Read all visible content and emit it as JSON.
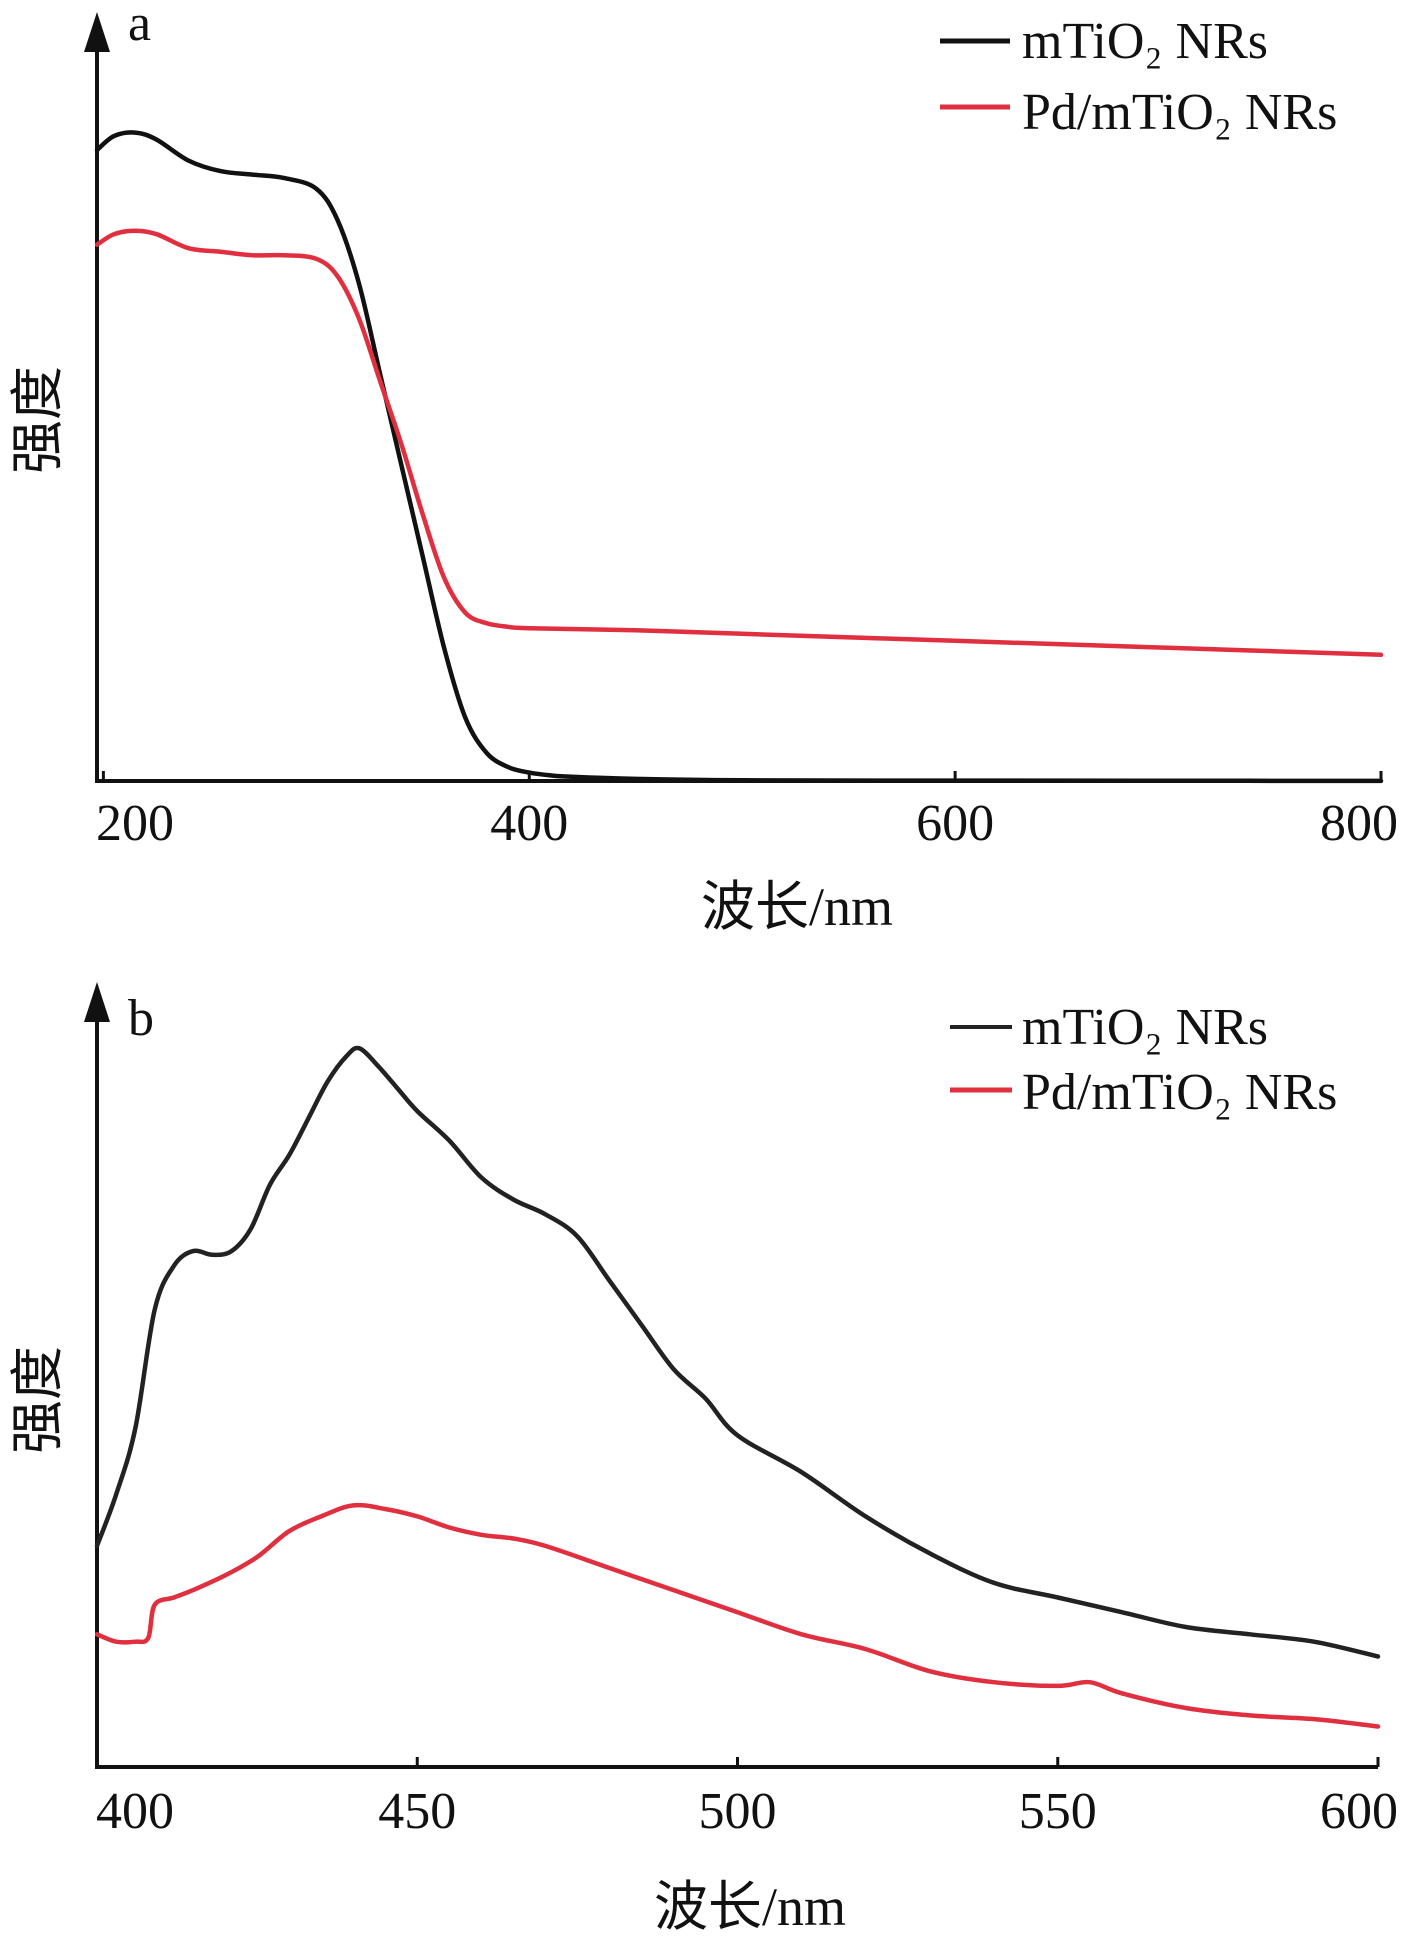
{
  "chart_data": [
    {
      "type": "line",
      "panel_label": "a",
      "xlabel": "波长/nm",
      "ylabel": "强度",
      "x_ticks": [
        "200",
        "400",
        "600",
        "800"
      ],
      "xlim": [
        197,
        800
      ],
      "ylim": [
        0,
        100
      ],
      "y_ticks_shown": false,
      "grid": false,
      "legend_position": "top-right",
      "series": [
        {
          "name": "mTiO₂ NRs",
          "color": "#111111",
          "x": [
            197,
            205,
            215,
            225,
            240,
            255,
            270,
            285,
            300,
            310,
            320,
            330,
            340,
            350,
            360,
            370,
            380,
            390,
            400,
            410,
            420,
            450,
            500,
            600,
            700,
            800
          ],
          "y": [
            90,
            92,
            92.5,
            91.5,
            88.5,
            87,
            86.5,
            86,
            84.5,
            80,
            71,
            58,
            45,
            32,
            19,
            9,
            4,
            2,
            1.2,
            0.8,
            0.6,
            0.3,
            0.1,
            0.05,
            0.03,
            0.02
          ]
        },
        {
          "name": "Pd/mTiO₂ NRs",
          "color": "#e03040",
          "x": [
            197,
            205,
            215,
            225,
            240,
            255,
            270,
            285,
            300,
            310,
            320,
            330,
            340,
            350,
            360,
            370,
            380,
            390,
            400,
            450,
            500,
            600,
            700,
            800
          ],
          "y": [
            76.5,
            78,
            78.5,
            78,
            76,
            75.5,
            75,
            75,
            74.5,
            72,
            66,
            57,
            48,
            38,
            29,
            24,
            22.5,
            22,
            21.8,
            21.5,
            21,
            20,
            19,
            18
          ]
        }
      ]
    },
    {
      "type": "line",
      "panel_label": "b",
      "xlabel": "波长/nm",
      "ylabel": "强度",
      "x_ticks": [
        "400",
        "450",
        "500",
        "550",
        "600"
      ],
      "xlim": [
        400,
        600
      ],
      "ylim": [
        0,
        100
      ],
      "y_ticks_shown": false,
      "grid": false,
      "legend_position": "top-right",
      "series": [
        {
          "name": "mTiO₂ NRs",
          "color": "#222222",
          "x": [
            400,
            403,
            406,
            409,
            412,
            415,
            418,
            421,
            424,
            427,
            430,
            433,
            436,
            439,
            441,
            444,
            447,
            450,
            455,
            460,
            465,
            470,
            475,
            480,
            485,
            490,
            495,
            500,
            510,
            520,
            530,
            540,
            550,
            560,
            570,
            580,
            590,
            600
          ],
          "y": [
            30,
            37,
            46,
            62,
            68,
            70,
            69.5,
            70,
            73,
            79,
            83,
            88,
            93,
            96.5,
            97.5,
            95,
            92,
            89,
            85,
            80,
            77,
            75,
            72,
            66,
            60,
            54,
            50,
            45,
            40,
            34,
            29,
            25,
            23,
            21,
            19,
            18,
            17,
            15
          ]
        },
        {
          "name": "Pd/mTiO₂ NRs",
          "color": "#e03040",
          "x": [
            400,
            403,
            406,
            408,
            409,
            412,
            415,
            420,
            425,
            430,
            435,
            440,
            445,
            450,
            455,
            460,
            465,
            470,
            480,
            490,
            500,
            510,
            520,
            530,
            540,
            550,
            555,
            560,
            570,
            580,
            590,
            600
          ],
          "y": [
            18,
            17,
            17,
            17.5,
            22,
            23,
            24,
            26,
            28.5,
            32,
            34,
            35.5,
            35,
            34,
            32.5,
            31.5,
            31,
            30,
            27,
            24,
            21,
            18,
            16,
            13,
            11.5,
            11,
            11.5,
            10,
            8,
            7,
            6.5,
            5.5
          ]
        }
      ]
    }
  ]
}
